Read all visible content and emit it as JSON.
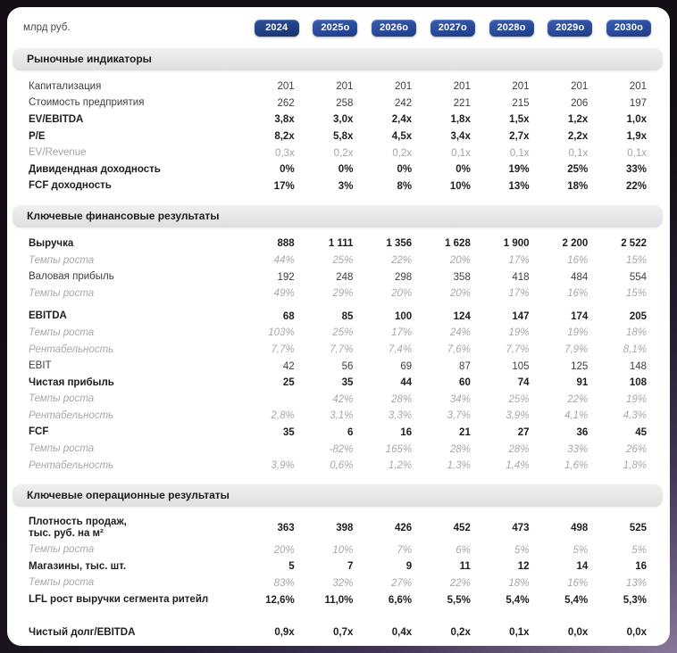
{
  "colors": {
    "chip_current_top": "#2e509b",
    "chip_current_bottom": "#17316f",
    "chip_forecast_top": "#3a5db1",
    "chip_forecast_bottom": "#1c3c87",
    "chip_text": "#ffffff",
    "section_bar_top": "#f0f0f0",
    "section_bar_bottom": "#dfdfdf",
    "frame_purple": "#8d7a9b",
    "card_background": "#ffffff"
  },
  "chart_data": {
    "type": "table",
    "unit": "млрд руб.",
    "columns": [
      "2024",
      "2025о",
      "2026о",
      "2027о",
      "2028о",
      "2029о",
      "2030о"
    ],
    "current_column": "2024",
    "sections": [
      {
        "title": "Рыночные индикаторы",
        "rows": [
          {
            "label": "Капитализация",
            "style": "normal",
            "values": [
              "201",
              "201",
              "201",
              "201",
              "201",
              "201",
              "201"
            ]
          },
          {
            "label": "Стоимость предприятия",
            "style": "normal",
            "values": [
              "262",
              "258",
              "242",
              "221",
              "215",
              "206",
              "197"
            ]
          },
          {
            "label": "EV/EBITDA",
            "style": "bold",
            "values": [
              "3,8x",
              "3,0x",
              "2,4x",
              "1,8x",
              "1,5x",
              "1,2x",
              "1,0x"
            ]
          },
          {
            "label": "P/E",
            "style": "bold",
            "values": [
              "8,2x",
              "5,8x",
              "4,5x",
              "3,4x",
              "2,7x",
              "2,2x",
              "1,9x"
            ]
          },
          {
            "label": "EV/Revenue",
            "style": "muted",
            "values": [
              "0,3x",
              "0,2x",
              "0,2x",
              "0,1x",
              "0,1x",
              "0,1x",
              "0,1x"
            ]
          },
          {
            "label": "Дивидендная доходность",
            "style": "bold",
            "values": [
              "0%",
              "0%",
              "0%",
              "0%",
              "19%",
              "25%",
              "33%"
            ]
          },
          {
            "label": "FCF доходность",
            "style": "bold",
            "values": [
              "17%",
              "3%",
              "8%",
              "10%",
              "13%",
              "18%",
              "22%"
            ]
          }
        ]
      },
      {
        "title": "Ключевые финансовые результаты",
        "rows": [
          {
            "label": "Выручка",
            "style": "bold",
            "values": [
              "888",
              "1 111",
              "1 356",
              "1 628",
              "1 900",
              "2 200",
              "2 522"
            ]
          },
          {
            "label": "Темпы роста",
            "style": "muted-italic",
            "values": [
              "44%",
              "25%",
              "22%",
              "20%",
              "17%",
              "16%",
              "15%"
            ]
          },
          {
            "label": "Валовая прибыль",
            "style": "normal",
            "values": [
              "192",
              "248",
              "298",
              "358",
              "418",
              "484",
              "554"
            ]
          },
          {
            "label": "Темпы роста",
            "style": "muted-italic",
            "values": [
              "49%",
              "29%",
              "20%",
              "20%",
              "17%",
              "16%",
              "15%"
            ]
          },
          {
            "label": "EBITDA",
            "style": "bold",
            "gap": "sm",
            "values": [
              "68",
              "85",
              "100",
              "124",
              "147",
              "174",
              "205"
            ]
          },
          {
            "label": "Темпы роста",
            "style": "muted-italic",
            "values": [
              "103%",
              "25%",
              "17%",
              "24%",
              "19%",
              "19%",
              "18%"
            ]
          },
          {
            "label": "Рентабельность",
            "style": "muted-italic",
            "values": [
              "7,7%",
              "7,7%",
              "7,4%",
              "7,6%",
              "7,7%",
              "7,9%",
              "8,1%"
            ]
          },
          {
            "label": "EBIT",
            "style": "normal",
            "values": [
              "42",
              "56",
              "69",
              "87",
              "105",
              "125",
              "148"
            ]
          },
          {
            "label": "Чистая прибыль",
            "style": "bold",
            "values": [
              "25",
              "35",
              "44",
              "60",
              "74",
              "91",
              "108"
            ]
          },
          {
            "label": "Темпы роста",
            "style": "muted-italic",
            "values": [
              "",
              "42%",
              "28%",
              "34%",
              "25%",
              "22%",
              "19%"
            ]
          },
          {
            "label": "Рентабельность",
            "style": "muted-italic",
            "values": [
              "2,8%",
              "3,1%",
              "3,3%",
              "3,7%",
              "3,9%",
              "4,1%",
              "4,3%"
            ]
          },
          {
            "label": "FCF",
            "style": "bold",
            "values": [
              "35",
              "6",
              "16",
              "21",
              "27",
              "36",
              "45"
            ]
          },
          {
            "label": "Темпы роста",
            "style": "muted-italic",
            "values": [
              "",
              "-82%",
              "165%",
              "28%",
              "28%",
              "33%",
              "26%"
            ]
          },
          {
            "label": "Рентабельность",
            "style": "muted-italic",
            "values": [
              "3,9%",
              "0,6%",
              "1,2%",
              "1,3%",
              "1,4%",
              "1,6%",
              "1,8%"
            ]
          }
        ]
      },
      {
        "title": "Ключевые операционные результаты",
        "rows": [
          {
            "label": "Плотность продаж,\nтыс. руб. на м²",
            "style": "bold",
            "values": [
              "363",
              "398",
              "426",
              "452",
              "473",
              "498",
              "525"
            ]
          },
          {
            "label": "Темпы роста",
            "style": "muted-italic",
            "values": [
              "20%",
              "10%",
              "7%",
              "6%",
              "5%",
              "5%",
              "5%"
            ]
          },
          {
            "label": "Магазины, тыс. шт.",
            "style": "bold",
            "values": [
              "5",
              "7",
              "9",
              "11",
              "12",
              "14",
              "16"
            ]
          },
          {
            "label": "Темпы роста",
            "style": "muted-italic",
            "values": [
              "83%",
              "32%",
              "27%",
              "22%",
              "18%",
              "16%",
              "13%"
            ]
          },
          {
            "label": "LFL рост выручки сегмента ритейл",
            "style": "bold",
            "values": [
              "12,6%",
              "11,0%",
              "6,6%",
              "5,5%",
              "5,4%",
              "5,4%",
              "5,3%"
            ]
          },
          {
            "label": "Чистый долг/EBITDA",
            "style": "bold",
            "gap": "lg",
            "values": [
              "0,9x",
              "0,7x",
              "0,4x",
              "0,2x",
              "0,1x",
              "0,0x",
              "0,0x"
            ]
          }
        ]
      }
    ]
  }
}
